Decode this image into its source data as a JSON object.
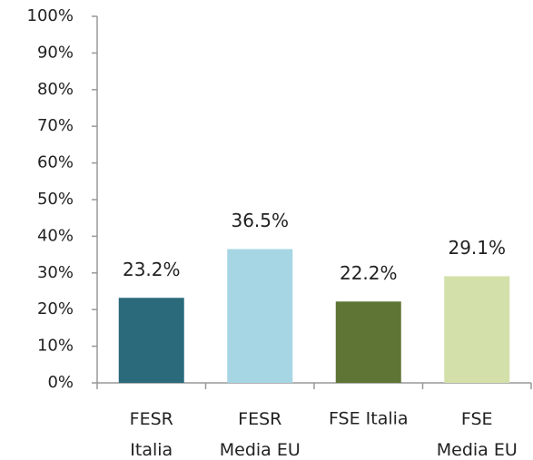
{
  "chart_data": {
    "type": "bar",
    "categories": [
      "FESR\nItalia",
      "FESR\nMedia EU",
      "FSE Italia",
      "FSE\nMedia EU"
    ],
    "values": [
      23.2,
      36.5,
      22.2,
      29.1
    ],
    "value_labels": [
      "23.2%",
      "36.5%",
      "22.2%",
      "29.1%"
    ],
    "colors": [
      "#2a6a7b",
      "#a6d6e4",
      "#5e7535",
      "#d3e0aa"
    ],
    "ylim": [
      0,
      100
    ],
    "yticks": [
      {
        "value": 0,
        "label": "0%"
      },
      {
        "value": 10,
        "label": "10%"
      },
      {
        "value": 20,
        "label": "20%"
      },
      {
        "value": 30,
        "label": "30%"
      },
      {
        "value": 40,
        "label": "40%"
      },
      {
        "value": 50,
        "label": "50%"
      },
      {
        "value": 60,
        "label": "60%"
      },
      {
        "value": 70,
        "label": "70%"
      },
      {
        "value": 80,
        "label": "80%"
      },
      {
        "value": 90,
        "label": "90%"
      },
      {
        "value": 100,
        "label": "100%"
      }
    ],
    "grid": false
  }
}
